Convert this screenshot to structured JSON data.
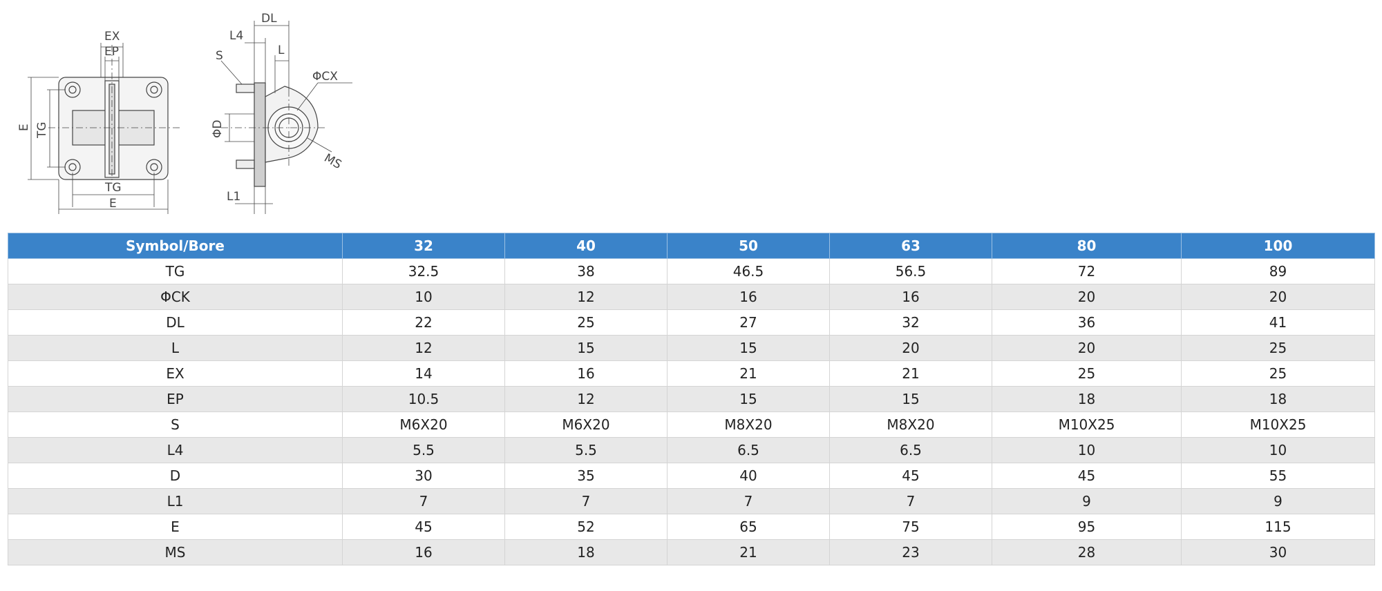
{
  "drawing": {
    "front_view": {
      "labels": {
        "ex": "EX",
        "ep": "EP",
        "e_vertical": "E",
        "tg_vertical": "TG",
        "tg_horizontal": "TG",
        "e_horizontal": "E"
      }
    },
    "side_view": {
      "labels": {
        "dl": "DL",
        "l4": "L4",
        "s": "S",
        "l": "L",
        "cx": "ΦCX",
        "d": "ΦD",
        "ms": "MS",
        "l1": "L1"
      }
    }
  },
  "table": {
    "headers": [
      "Symbol/Bore",
      "32",
      "40",
      "50",
      "63",
      "80",
      "100"
    ],
    "rows": [
      [
        "TG",
        "32.5",
        "38",
        "46.5",
        "56.5",
        "72",
        "89"
      ],
      [
        "ΦCK",
        "10",
        "12",
        "16",
        "16",
        "20",
        "20"
      ],
      [
        "DL",
        "22",
        "25",
        "27",
        "32",
        "36",
        "41"
      ],
      [
        "L",
        "12",
        "15",
        "15",
        "20",
        "20",
        "25"
      ],
      [
        "EX",
        "14",
        "16",
        "21",
        "21",
        "25",
        "25"
      ],
      [
        "EP",
        "10.5",
        "12",
        "15",
        "15",
        "18",
        "18"
      ],
      [
        "S",
        "M6X20",
        "M6X20",
        "M8X20",
        "M8X20",
        "M10X25",
        "M10X25"
      ],
      [
        "L4",
        "5.5",
        "5.5",
        "6.5",
        "6.5",
        "10",
        "10"
      ],
      [
        "D",
        "30",
        "35",
        "40",
        "45",
        "45",
        "55"
      ],
      [
        "L1",
        "7",
        "7",
        "7",
        "7",
        "9",
        "9"
      ],
      [
        "E",
        "45",
        "52",
        "65",
        "75",
        "95",
        "115"
      ],
      [
        "MS",
        "16",
        "18",
        "21",
        "23",
        "28",
        "30"
      ]
    ]
  },
  "colors": {
    "header_bg": "#3a83c9",
    "row_alt_bg": "#e8e8e8"
  }
}
